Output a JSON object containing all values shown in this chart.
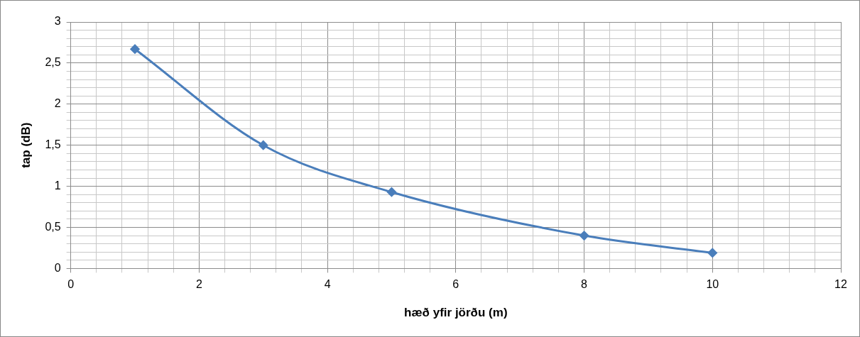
{
  "chart_data": {
    "type": "line",
    "xlabel": "hæð yfir jörðu (m)",
    "ylabel": "tap (dB)",
    "x": [
      1,
      3,
      5,
      8,
      10
    ],
    "series": [
      {
        "color": "#4a7ebb",
        "values": [
          2.67,
          1.5,
          0.93,
          0.4,
          0.19
        ]
      }
    ],
    "xlim": [
      0,
      12
    ],
    "xticks": [
      0,
      {
        "value": 0.4,
        "label": null
      },
      {
        "value": 0.8,
        "label": null
      },
      {
        "value": 1.2,
        "label": null
      },
      {
        "value": 1.6,
        "label": null
      },
      2,
      {
        "value": 2.4,
        "label": null
      },
      {
        "value": 2.8,
        "label": null
      },
      {
        "value": 3.2,
        "label": null
      },
      {
        "value": 3.6,
        "label": null
      },
      4,
      {
        "value": 4.4,
        "label": null
      },
      {
        "value": 4.8,
        "label": null
      },
      {
        "value": 5.2,
        "label": null
      },
      {
        "value": 5.6,
        "label": null
      },
      6,
      {
        "value": 6.4,
        "label": null
      },
      {
        "value": 6.8,
        "label": null
      },
      {
        "value": 7.2,
        "label": null
      },
      {
        "value": 7.6,
        "label": null
      },
      8,
      {
        "value": 8.4,
        "label": null
      },
      {
        "value": 8.8,
        "label": null
      },
      {
        "value": 9.2,
        "label": null
      },
      {
        "value": 9.6,
        "label": null
      },
      10,
      {
        "value": 10.4,
        "label": null
      },
      {
        "value": 10.8,
        "label": null
      },
      {
        "value": 11.2,
        "label": null
      },
      {
        "value": 11.6,
        "label": null
      },
      12
    ],
    "ylim": [
      0,
      3
    ],
    "yticks": [
      0,
      {
        "value": 0.1,
        "label": null
      },
      {
        "value": 0.2,
        "label": null
      },
      {
        "value": 0.3,
        "label": null
      },
      {
        "value": 0.4,
        "label": null
      },
      {
        "value": 0.5,
        "label": "0,5"
      },
      {
        "value": 0.6,
        "label": null
      },
      {
        "value": 0.7,
        "label": null
      },
      {
        "value": 0.8,
        "label": null
      },
      {
        "value": 0.9,
        "label": null
      },
      1,
      {
        "value": 1.1,
        "label": null
      },
      {
        "value": 1.2,
        "label": null
      },
      {
        "value": 1.3,
        "label": null
      },
      {
        "value": 1.4,
        "label": null
      },
      {
        "value": 1.5,
        "label": "1,5"
      },
      {
        "value": 1.6,
        "label": null
      },
      {
        "value": 1.7,
        "label": null
      },
      {
        "value": 1.8,
        "label": null
      },
      {
        "value": 1.9,
        "label": null
      },
      2,
      {
        "value": 2.1,
        "label": null
      },
      {
        "value": 2.2,
        "label": null
      },
      {
        "value": 2.3,
        "label": null
      },
      {
        "value": 2.4,
        "label": null
      },
      {
        "value": 2.5,
        "label": "2,5"
      },
      {
        "value": 2.6,
        "label": null
      },
      {
        "value": 2.7,
        "label": null
      },
      {
        "value": 2.8,
        "label": null
      },
      {
        "value": 2.9,
        "label": null
      },
      3
    ],
    "grid": true,
    "marker": "diamond",
    "line_style": "solid",
    "legend": false
  }
}
